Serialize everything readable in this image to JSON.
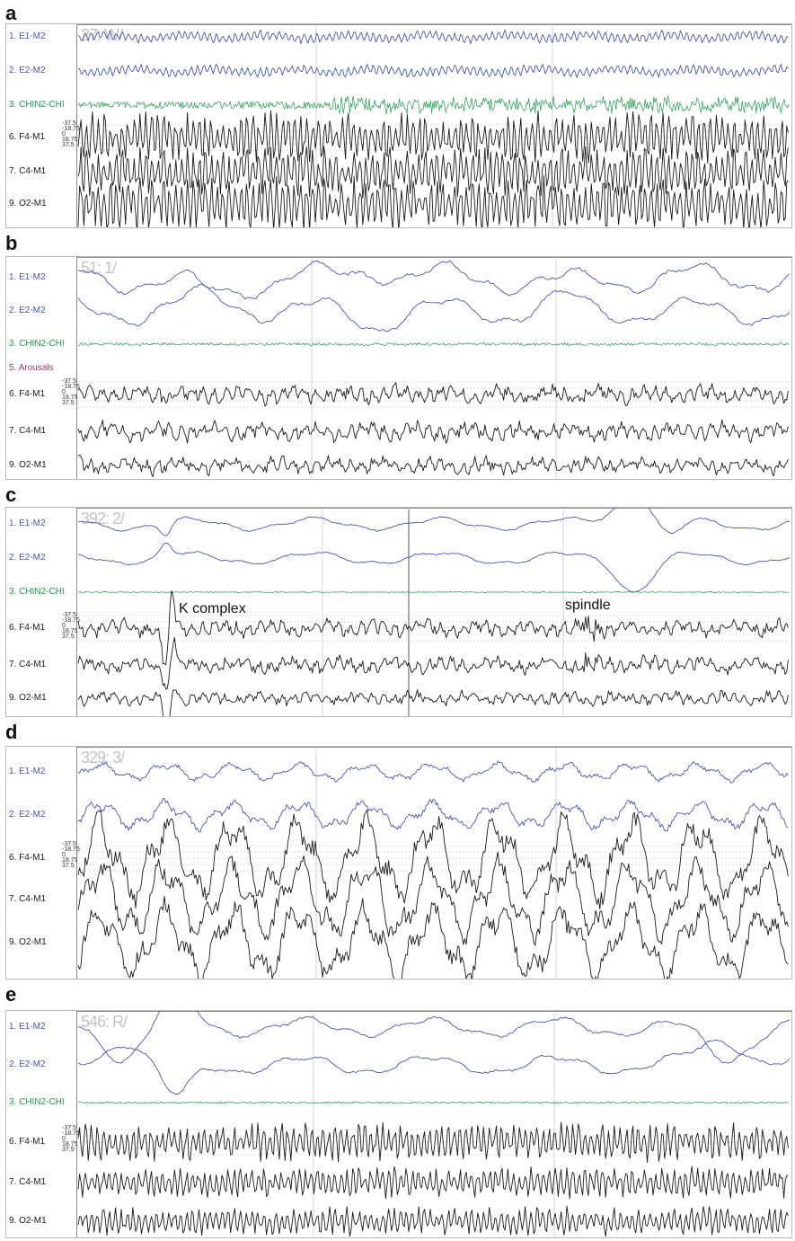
{
  "colors": {
    "eog": "#4a55b0",
    "chin": "#1f9a4d",
    "eeg": "#1a1a1a",
    "arousal": "#9b3a56",
    "grid": "#c8ccd6"
  },
  "scale_labels": [
    "-37.5",
    "-18.75",
    "0",
    "18.75",
    "37.5"
  ],
  "panels": [
    {
      "letter": "a",
      "timecode": "27: W/",
      "channels": [
        {
          "label": "1. E1-M2",
          "type": "eog"
        },
        {
          "label": "2. E2-M2",
          "type": "eog"
        },
        {
          "label": "3. CHIN2-CHI",
          "type": "chin"
        },
        {
          "label": "6. F4-M1",
          "type": "eeg"
        },
        {
          "label": "7. C4-M1",
          "type": "eeg"
        },
        {
          "label": "9. O2-M1",
          "type": "eeg"
        }
      ],
      "annotations": []
    },
    {
      "letter": "b",
      "timecode": "51: 1/",
      "channels": [
        {
          "label": "1. E1-M2",
          "type": "eog"
        },
        {
          "label": "2. E2-M2",
          "type": "eog"
        },
        {
          "label": "3. CHIN2-CHI",
          "type": "chin"
        },
        {
          "label": "5. Arousals",
          "type": "arousal"
        },
        {
          "label": "6. F4-M1",
          "type": "eeg"
        },
        {
          "label": "7. C4-M1",
          "type": "eeg"
        },
        {
          "label": "9. O2-M1",
          "type": "eeg"
        }
      ],
      "annotations": []
    },
    {
      "letter": "c",
      "timecode": "392: 2/",
      "channels": [
        {
          "label": "1. E1-M2",
          "type": "eog"
        },
        {
          "label": "2. E2-M2",
          "type": "eog"
        },
        {
          "label": "3. CHIN2-CHI",
          "type": "chin"
        },
        {
          "label": "6. F4-M1",
          "type": "eeg"
        },
        {
          "label": "7. C4-M1",
          "type": "eeg"
        },
        {
          "label": "9. O2-M1",
          "type": "eeg"
        }
      ],
      "annotations": [
        {
          "text": "K complex"
        },
        {
          "text": "spindle"
        }
      ]
    },
    {
      "letter": "d",
      "timecode": "329: 3/",
      "channels": [
        {
          "label": "1. E1-M2",
          "type": "eog"
        },
        {
          "label": "2. E2-M2",
          "type": "eog"
        },
        {
          "label": "6. F4-M1",
          "type": "eeg"
        },
        {
          "label": "7. C4-M1",
          "type": "eeg"
        },
        {
          "label": "9. O2-M1",
          "type": "eeg"
        }
      ],
      "annotations": []
    },
    {
      "letter": "e",
      "timecode": "546: R/",
      "channels": [
        {
          "label": "1. E1-M2",
          "type": "eog"
        },
        {
          "label": "2. E2-M2",
          "type": "eog"
        },
        {
          "label": "3. CHIN2-CHI",
          "type": "chin"
        },
        {
          "label": "6. F4-M1",
          "type": "eeg"
        },
        {
          "label": "7. C4-M1",
          "type": "eeg"
        },
        {
          "label": "9. O2-M1",
          "type": "eeg"
        }
      ],
      "annotations": []
    }
  ]
}
